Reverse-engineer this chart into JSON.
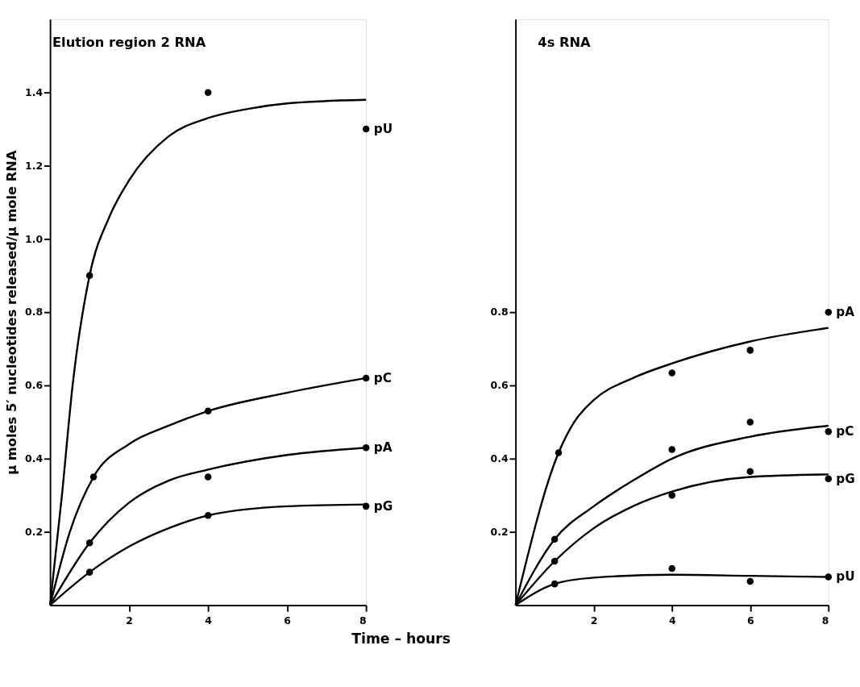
{
  "chart_data": [
    {
      "type": "scatter",
      "title": "Elution region 2 RNA",
      "xlabel": "Time – hours",
      "ylabel": "μ moles 5′ nucleotides released/μ mole RNA",
      "xlim": [
        0,
        8
      ],
      "ylim": [
        0,
        1.6
      ],
      "xticks": [
        2,
        4,
        6,
        8
      ],
      "yticks": [
        0.2,
        0.4,
        0.6,
        0.8,
        {
          "value": 1.0,
          "label": "1.0"
        },
        1.2,
        1.4
      ],
      "grid": false,
      "marker": "circle",
      "series": [
        {
          "name": "pU",
          "color": "#000000",
          "x": [
            1,
            4,
            8
          ],
          "values": [
            0.9,
            1.4,
            1.3
          ]
        },
        {
          "name": "pC",
          "color": "#000000",
          "x": [
            1.1,
            4,
            8
          ],
          "values": [
            0.35,
            0.53,
            0.62
          ]
        },
        {
          "name": "pA",
          "color": "#000000",
          "x": [
            1,
            4,
            8
          ],
          "values": [
            0.17,
            0.35,
            0.43
          ]
        },
        {
          "name": "pG",
          "color": "#000000",
          "x": [
            1,
            4,
            8
          ],
          "values": [
            0.09,
            0.245,
            0.27
          ]
        },
        {
          "type": "line",
          "marker": "none",
          "line_style": "solid",
          "color": "#000000",
          "x": [
            0,
            0.3,
            0.57,
            1,
            1.5,
            2,
            3,
            4,
            5,
            6,
            8
          ],
          "values": [
            0,
            0.3,
            0.6,
            0.9,
            1.06,
            1.16,
            1.28,
            1.33,
            1.355,
            1.37,
            1.38
          ]
        },
        {
          "type": "line",
          "marker": "none",
          "line_style": "solid",
          "color": "#000000",
          "x": [
            0,
            0.5,
            1.1,
            2,
            3,
            4,
            6,
            8
          ],
          "values": [
            0,
            0.2,
            0.35,
            0.44,
            0.49,
            0.53,
            0.58,
            0.62
          ]
        },
        {
          "type": "line",
          "marker": "none",
          "line_style": "solid",
          "color": "#000000",
          "x": [
            0,
            1,
            2,
            3,
            4,
            6,
            8
          ],
          "values": [
            0,
            0.17,
            0.28,
            0.34,
            0.37,
            0.41,
            0.43
          ]
        },
        {
          "type": "line",
          "marker": "none",
          "line_style": "solid",
          "color": "#000000",
          "x": [
            0,
            1,
            2,
            3,
            4,
            6,
            8
          ],
          "values": [
            0,
            0.09,
            0.16,
            0.21,
            0.245,
            0.27,
            0.275
          ]
        }
      ]
    },
    {
      "type": "scatter",
      "title": "4s RNA",
      "xlim": [
        0,
        8
      ],
      "ylim": [
        0,
        1.6
      ],
      "xticks": [
        2,
        4,
        6,
        8
      ],
      "yticks": [
        0.2,
        0.4,
        0.6,
        0.8
      ],
      "grid": false,
      "marker": "circle",
      "series": [
        {
          "name": "pA",
          "color": "#000000",
          "x": [
            1.1,
            4,
            6,
            8
          ],
          "values": [
            0.416,
            0.634,
            0.696,
            0.8
          ]
        },
        {
          "name": "pC",
          "color": "#000000",
          "x": [
            1,
            4,
            6,
            8
          ],
          "values": [
            0.18,
            0.425,
            0.5,
            0.474
          ]
        },
        {
          "name": "pG",
          "color": "#000000",
          "x": [
            1,
            4,
            6,
            8
          ],
          "values": [
            0.12,
            0.3,
            0.365,
            0.345
          ]
        },
        {
          "name": "pU",
          "color": "#000000",
          "x": [
            1,
            4,
            6,
            8
          ],
          "values": [
            0.058,
            0.1,
            0.065,
            0.077
          ]
        },
        {
          "type": "line",
          "marker": "none",
          "line_style": "solid",
          "color": "#000000",
          "x": [
            0,
            1.1,
            1.5,
            2,
            3,
            4,
            6,
            8
          ],
          "values": [
            0,
            0.416,
            0.5,
            0.56,
            0.62,
            0.66,
            0.72,
            0.757
          ]
        },
        {
          "type": "line",
          "marker": "none",
          "line_style": "solid",
          "color": "#000000",
          "x": [
            0,
            1,
            2,
            3,
            4,
            6,
            8
          ],
          "values": [
            0,
            0.18,
            0.27,
            0.34,
            0.4,
            0.46,
            0.49
          ]
        },
        {
          "type": "line",
          "marker": "none",
          "line_style": "solid",
          "color": "#000000",
          "x": [
            0,
            1,
            2,
            3,
            4,
            6,
            8
          ],
          "values": [
            0,
            0.12,
            0.21,
            0.27,
            0.31,
            0.35,
            0.357
          ]
        },
        {
          "type": "line",
          "marker": "none",
          "line_style": "solid",
          "color": "#000000",
          "x": [
            0,
            1,
            2,
            4,
            6,
            8
          ],
          "values": [
            0,
            0.058,
            0.075,
            0.083,
            0.08,
            0.077
          ]
        }
      ]
    }
  ]
}
